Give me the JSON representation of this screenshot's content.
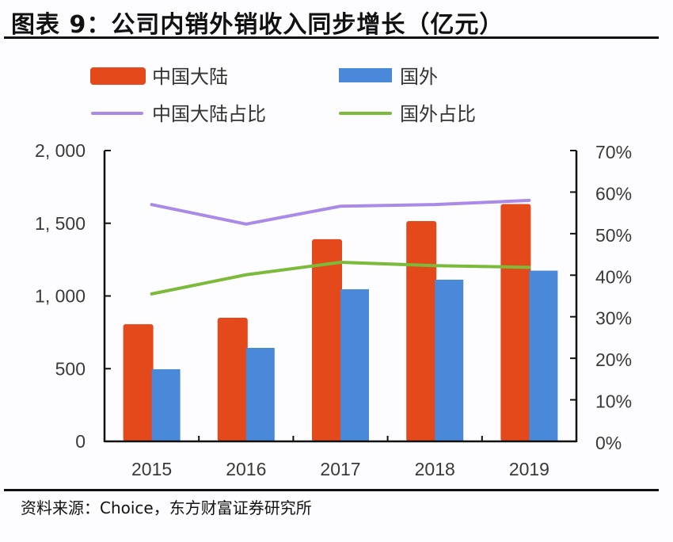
{
  "header": {
    "title": "图表 9：公司内销外销收入同步增长（亿元）"
  },
  "footer": {
    "source": "资料来源：Choice，东方财富证券研究所"
  },
  "colors": {
    "mainland_bar": "#e4491b",
    "overseas_bar": "#4a89d9",
    "mainland_share_line": "#a98ae6",
    "overseas_share_line": "#7cba3a",
    "axis": "#111111"
  },
  "chart_data": {
    "type": "bar",
    "title": "图表 9：公司内销外销收入同步增长（亿元）",
    "categories": [
      "2015",
      "2016",
      "2017",
      "2018",
      "2019"
    ],
    "series": [
      {
        "name": "中国大陆",
        "type": "bar",
        "axis": "left",
        "values": [
          806,
          850,
          1390,
          1515,
          1632
        ]
      },
      {
        "name": "国外",
        "type": "bar",
        "axis": "left",
        "values": [
          496,
          643,
          1046,
          1112,
          1174
        ]
      },
      {
        "name": "中国大陆占比",
        "type": "line",
        "axis": "right",
        "values": [
          0.57,
          0.523,
          0.566,
          0.57,
          0.58
        ]
      },
      {
        "name": "国外占比",
        "type": "line",
        "axis": "right",
        "values": [
          0.355,
          0.401,
          0.431,
          0.423,
          0.419
        ]
      }
    ],
    "left_axis": {
      "ylim": [
        0,
        2000
      ],
      "ticks": [
        0,
        500,
        1000,
        1500,
        2000
      ],
      "tick_labels": [
        "0",
        "500",
        "1, 000",
        "1, 500",
        "2, 000"
      ]
    },
    "right_axis": {
      "ylim": [
        0,
        0.7
      ],
      "ticks": [
        0,
        0.1,
        0.2,
        0.3,
        0.4,
        0.5,
        0.6,
        0.7
      ],
      "tick_labels": [
        "0%",
        "10%",
        "20%",
        "30%",
        "40%",
        "50%",
        "60%",
        "70%"
      ]
    },
    "xlabel": "",
    "ylabel": "",
    "grid": false,
    "legend": {
      "placement": "top",
      "entries": [
        "中国大陆",
        "国外",
        "中国大陆占比",
        "国外占比"
      ]
    }
  }
}
